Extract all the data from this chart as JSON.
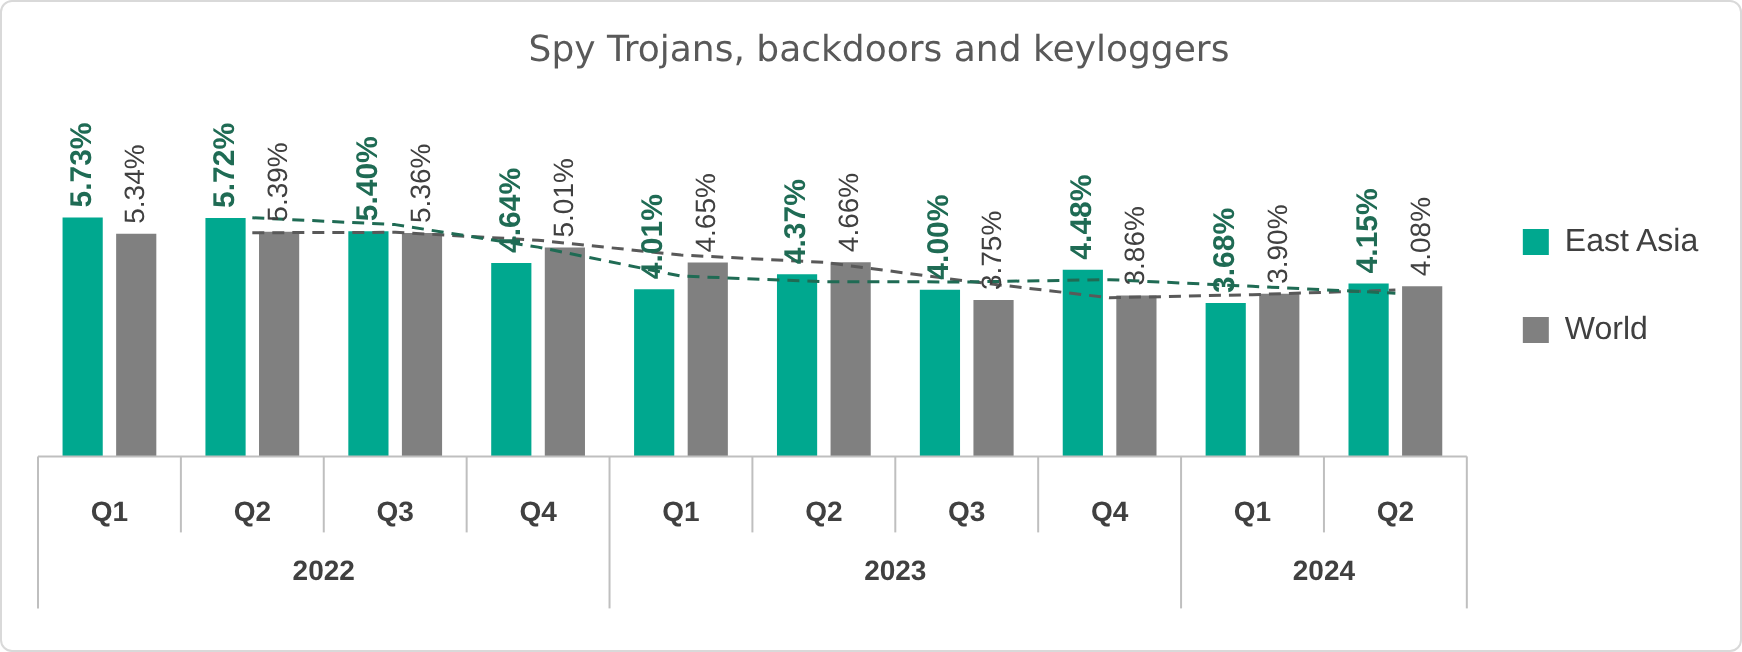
{
  "chart_data": {
    "type": "bar",
    "title": "Spy Trojans, backdoors and keyloggers",
    "categories": [
      "Q1",
      "Q2",
      "Q3",
      "Q4",
      "Q1",
      "Q2",
      "Q3",
      "Q4",
      "Q1",
      "Q2"
    ],
    "annotations": [
      "2022",
      "2023",
      "2024"
    ],
    "series": [
      {
        "name": "East Asia",
        "color": "#00a88f",
        "values": [
          5.73,
          5.72,
          5.4,
          4.64,
          4.01,
          4.37,
          4.0,
          4.48,
          3.68,
          4.15
        ],
        "value_labels": [
          "5.73%",
          "5.72%",
          "5.40%",
          "4.64%",
          "4.01%",
          "4.37%",
          "4.00%",
          "4.48%",
          "3.68%",
          "4.15%"
        ]
      },
      {
        "name": "World",
        "color": "#808080",
        "values": [
          5.34,
          5.39,
          5.36,
          5.01,
          4.65,
          4.66,
          3.75,
          3.86,
          3.9,
          4.08
        ],
        "value_labels": [
          "5.34%",
          "5.39%",
          "5.36%",
          "5.01%",
          "4.65%",
          "4.66%",
          "3.75%",
          "3.86%",
          "3.90%",
          "4.08%"
        ]
      },
      {
        "type": "line",
        "color": "#1f6b54",
        "line_style": "dashed",
        "values": [
          null,
          5.725,
          5.56,
          5.02,
          4.325,
          4.19,
          4.185,
          4.24,
          4.08,
          3.915
        ]
      },
      {
        "type": "line",
        "color": "#595959",
        "line_style": "dashed",
        "values": [
          null,
          5.365,
          5.375,
          5.185,
          4.83,
          4.655,
          4.205,
          3.805,
          3.88,
          3.99
        ]
      }
    ],
    "legend": "right",
    "grid": false
  }
}
